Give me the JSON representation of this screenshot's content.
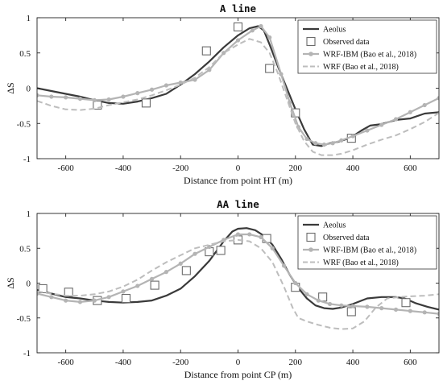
{
  "chart_data": [
    {
      "type": "line",
      "title": "A line",
      "xlabel": "Distance from point HT (m)",
      "ylabel": "ΔS",
      "xlim": [
        -700,
        700
      ],
      "ylim": [
        -1,
        1
      ],
      "xticks": [
        -600,
        -400,
        -200,
        0,
        200,
        400,
        600
      ],
      "yticks": [
        1,
        0.5,
        0,
        -0.5,
        -1
      ],
      "grid": false,
      "legend_position": "top-right",
      "colors": {
        "aeolus": "#3a3a3a",
        "observed": "#6a6a6a",
        "wrf_ibm": "#b4b4b4",
        "wrf": "#bdbdbd"
      },
      "series": [
        {
          "name": "Aeolus",
          "style": "solid-dark",
          "x": [
            -700,
            -650,
            -600,
            -550,
            -500,
            -450,
            -400,
            -350,
            -300,
            -250,
            -200,
            -150,
            -100,
            -50,
            0,
            40,
            70,
            90,
            110,
            140,
            170,
            200,
            230,
            260,
            290,
            320,
            350,
            380,
            400,
            430,
            460,
            500,
            550,
            600,
            650,
            700
          ],
          "y": [
            0,
            -0.04,
            -0.08,
            -0.12,
            -0.17,
            -0.21,
            -0.22,
            -0.19,
            -0.14,
            -0.08,
            0.05,
            0.2,
            0.38,
            0.58,
            0.75,
            0.85,
            0.88,
            0.82,
            0.62,
            0.3,
            0.0,
            -0.3,
            -0.58,
            -0.8,
            -0.82,
            -0.78,
            -0.76,
            -0.72,
            -0.68,
            -0.6,
            -0.53,
            -0.51,
            -0.45,
            -0.43,
            -0.36,
            -0.34
          ]
        },
        {
          "name": "Observed data",
          "style": "square",
          "x": [
            -490,
            -320,
            -110,
            0,
            110,
            200,
            395
          ],
          "y": [
            -0.24,
            -0.21,
            0.53,
            0.87,
            0.28,
            -0.35,
            -0.71
          ]
        },
        {
          "name": "WRF-IBM (Bao et al., 2018)",
          "style": "solid-light-dots",
          "x": [
            -700,
            -650,
            -600,
            -550,
            -500,
            -450,
            -400,
            -350,
            -300,
            -250,
            -200,
            -150,
            -100,
            -50,
            0,
            50,
            80,
            110,
            150,
            180,
            210,
            240,
            270,
            300,
            330,
            360,
            400,
            450,
            500,
            550,
            600,
            650,
            700
          ],
          "y": [
            -0.1,
            -0.12,
            -0.13,
            -0.15,
            -0.17,
            -0.16,
            -0.12,
            -0.07,
            -0.02,
            0.04,
            0.08,
            0.12,
            0.26,
            0.5,
            0.68,
            0.82,
            0.88,
            0.72,
            0.2,
            -0.2,
            -0.55,
            -0.72,
            -0.78,
            -0.8,
            -0.78,
            -0.74,
            -0.68,
            -0.6,
            -0.52,
            -0.44,
            -0.34,
            -0.24,
            -0.14
          ]
        },
        {
          "name": "WRF (Bao et al., 2018)",
          "style": "dashed-light",
          "x": [
            -700,
            -650,
            -600,
            -550,
            -500,
            -450,
            -400,
            -350,
            -300,
            -250,
            -200,
            -150,
            -100,
            -50,
            0,
            40,
            80,
            110,
            140,
            170,
            200,
            230,
            260,
            290,
            330,
            360,
            400,
            450,
            500,
            550,
            600,
            650,
            700
          ],
          "y": [
            -0.18,
            -0.25,
            -0.3,
            -0.31,
            -0.29,
            -0.24,
            -0.2,
            -0.16,
            -0.1,
            -0.03,
            0.05,
            0.15,
            0.3,
            0.5,
            0.62,
            0.7,
            0.65,
            0.5,
            0.2,
            -0.15,
            -0.5,
            -0.75,
            -0.9,
            -0.95,
            -0.95,
            -0.93,
            -0.88,
            -0.8,
            -0.73,
            -0.67,
            -0.58,
            -0.48,
            -0.35
          ]
        }
      ]
    },
    {
      "type": "line",
      "title": "AA line",
      "xlabel": "Distance from point CP (m)",
      "ylabel": "ΔS",
      "xlim": [
        -700,
        700
      ],
      "ylim": [
        -1,
        1
      ],
      "xticks": [
        -600,
        -400,
        -200,
        0,
        200,
        400,
        600
      ],
      "yticks": [
        1,
        0.5,
        0,
        -0.5,
        -1
      ],
      "grid": false,
      "legend_position": "top-right",
      "colors": {
        "aeolus": "#3a3a3a",
        "observed": "#6a6a6a",
        "wrf_ibm": "#b4b4b4",
        "wrf": "#bdbdbd"
      },
      "series": [
        {
          "name": "Aeolus",
          "style": "solid-dark",
          "x": [
            -700,
            -650,
            -600,
            -550,
            -500,
            -450,
            -400,
            -350,
            -300,
            -250,
            -200,
            -150,
            -100,
            -50,
            -20,
            0,
            30,
            60,
            90,
            120,
            150,
            180,
            210,
            240,
            270,
            300,
            330,
            360,
            400,
            450,
            500,
            550,
            580,
            620,
            660,
            700
          ],
          "y": [
            -0.1,
            -0.15,
            -0.2,
            -0.22,
            -0.25,
            -0.27,
            -0.28,
            -0.27,
            -0.25,
            -0.18,
            -0.08,
            0.1,
            0.32,
            0.6,
            0.74,
            0.78,
            0.79,
            0.76,
            0.68,
            0.55,
            0.35,
            0.12,
            -0.07,
            -0.22,
            -0.32,
            -0.36,
            -0.37,
            -0.35,
            -0.3,
            -0.22,
            -0.2,
            -0.2,
            -0.22,
            -0.29,
            -0.34,
            -0.38
          ]
        },
        {
          "name": "Observed data",
          "style": "square",
          "x": [
            -680,
            -590,
            -490,
            -390,
            -290,
            -180,
            -100,
            -60,
            0,
            100,
            200,
            295,
            395,
            585
          ],
          "y": [
            -0.08,
            -0.13,
            -0.25,
            -0.22,
            -0.03,
            0.18,
            0.45,
            0.47,
            0.62,
            0.64,
            -0.06,
            -0.2,
            -0.41,
            -0.28
          ]
        },
        {
          "name": "WRF-IBM (Bao et al., 2018)",
          "style": "solid-light-dots",
          "x": [
            -700,
            -650,
            -600,
            -550,
            -500,
            -450,
            -400,
            -350,
            -300,
            -250,
            -200,
            -150,
            -100,
            -50,
            0,
            40,
            80,
            120,
            160,
            200,
            240,
            280,
            320,
            360,
            400,
            450,
            500,
            550,
            600,
            650,
            700
          ],
          "y": [
            -0.15,
            -0.2,
            -0.25,
            -0.27,
            -0.25,
            -0.2,
            -0.12,
            -0.04,
            0.06,
            0.16,
            0.28,
            0.42,
            0.52,
            0.62,
            0.7,
            0.7,
            0.66,
            0.5,
            0.25,
            0.0,
            -0.16,
            -0.25,
            -0.3,
            -0.32,
            -0.33,
            -0.34,
            -0.36,
            -0.38,
            -0.4,
            -0.42,
            -0.44
          ]
        },
        {
          "name": "WRF (Bao et al., 2018)",
          "style": "dashed-light",
          "x": [
            -700,
            -650,
            -600,
            -550,
            -500,
            -450,
            -400,
            -350,
            -300,
            -250,
            -200,
            -150,
            -100,
            -50,
            0,
            40,
            80,
            120,
            160,
            190,
            210,
            240,
            280,
            320,
            360,
            400,
            440,
            480,
            520,
            560,
            600,
            650,
            700
          ],
          "y": [
            -0.12,
            -0.15,
            -0.18,
            -0.18,
            -0.16,
            -0.12,
            -0.05,
            0.05,
            0.18,
            0.3,
            0.4,
            0.5,
            0.55,
            0.6,
            0.62,
            0.6,
            0.5,
            0.3,
            -0.05,
            -0.35,
            -0.5,
            -0.55,
            -0.6,
            -0.64,
            -0.66,
            -0.65,
            -0.55,
            -0.35,
            -0.22,
            -0.2,
            -0.19,
            -0.18,
            -0.16
          ]
        }
      ]
    }
  ]
}
